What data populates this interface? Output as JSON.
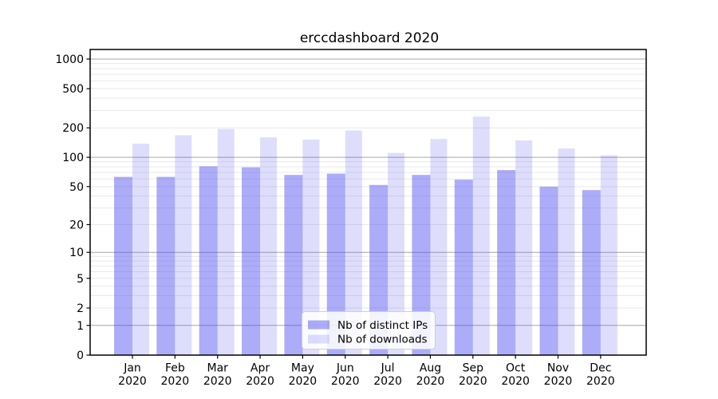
{
  "page": {
    "background": "#ffffff"
  },
  "chart_data": {
    "type": "bar",
    "title": "erccdashboard 2020",
    "categories": [
      "Jan",
      "Feb",
      "Mar",
      "Apr",
      "May",
      "Jun",
      "Jul",
      "Aug",
      "Sep",
      "Oct",
      "Nov",
      "Dec"
    ],
    "x_year_label": "2020",
    "series": [
      {
        "key": "distinct-ips",
        "name": "Nb of distinct IPs",
        "color": "#4646f0",
        "fill_opacity": 0.45,
        "values": [
          63,
          63,
          81,
          79,
          66,
          68,
          52,
          66,
          59,
          74,
          50,
          46
        ]
      },
      {
        "key": "downloads",
        "name": "Nb of downloads",
        "color": "#4646f0",
        "fill_opacity": 0.18,
        "values": [
          138,
          168,
          195,
          160,
          152,
          188,
          111,
          154,
          260,
          149,
          123,
          105
        ]
      }
    ],
    "y_axis": {
      "scale": "symlog",
      "ticks": [
        0,
        1,
        2,
        5,
        10,
        20,
        50,
        100,
        200,
        500,
        1000
      ],
      "max": 1250
    },
    "x_axis": {
      "label_format": "month over year"
    },
    "grid": {
      "orientation": "horizontal",
      "majors": [
        1,
        10,
        100,
        1000
      ],
      "major_color": "#a6a6a6",
      "minor_color": "#e9e9e9"
    },
    "legend": {
      "position": "lower center"
    },
    "frame_color": "#000000"
  }
}
